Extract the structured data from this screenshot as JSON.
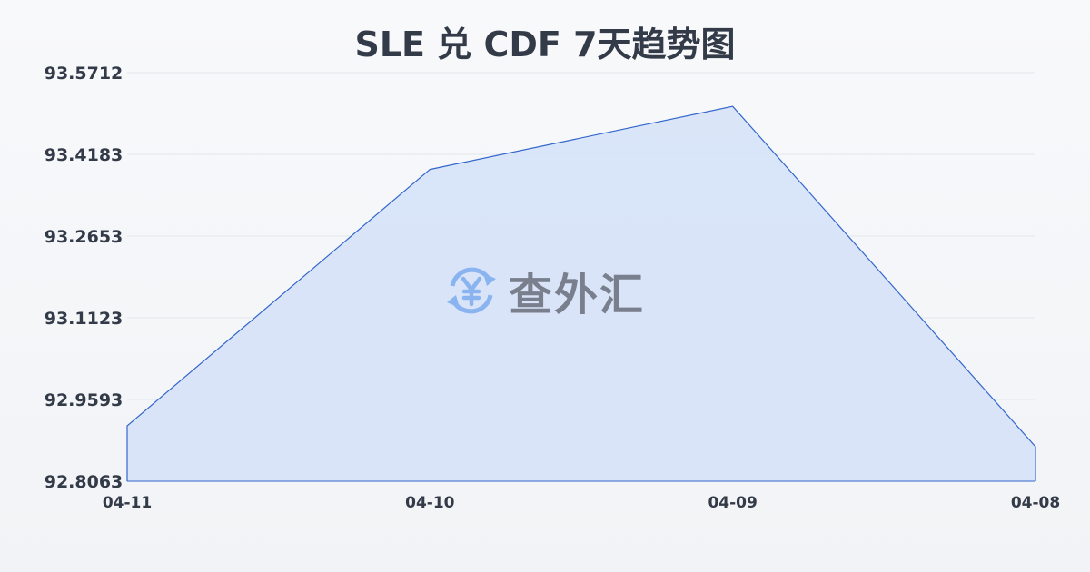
{
  "title": "SLE 兑 CDF 7天趋势图",
  "watermark": {
    "text": "查外汇",
    "icon": "yen-exchange-icon",
    "icon_color": "#8ab4f0"
  },
  "chart_data": {
    "type": "area",
    "title": "SLE 兑 CDF 7天趋势图",
    "categories": [
      "04-11",
      "04-10",
      "04-09",
      "04-08"
    ],
    "values": [
      92.91,
      93.39,
      93.508,
      92.871
    ],
    "yticks": [
      "93.5712",
      "93.4183",
      "93.2653",
      "93.1123",
      "92.9593",
      "92.8063"
    ],
    "ylim": [
      92.8063,
      93.5712
    ],
    "grid": true,
    "line_color": "#3366cc",
    "fill_color": "#d6e2f7"
  }
}
